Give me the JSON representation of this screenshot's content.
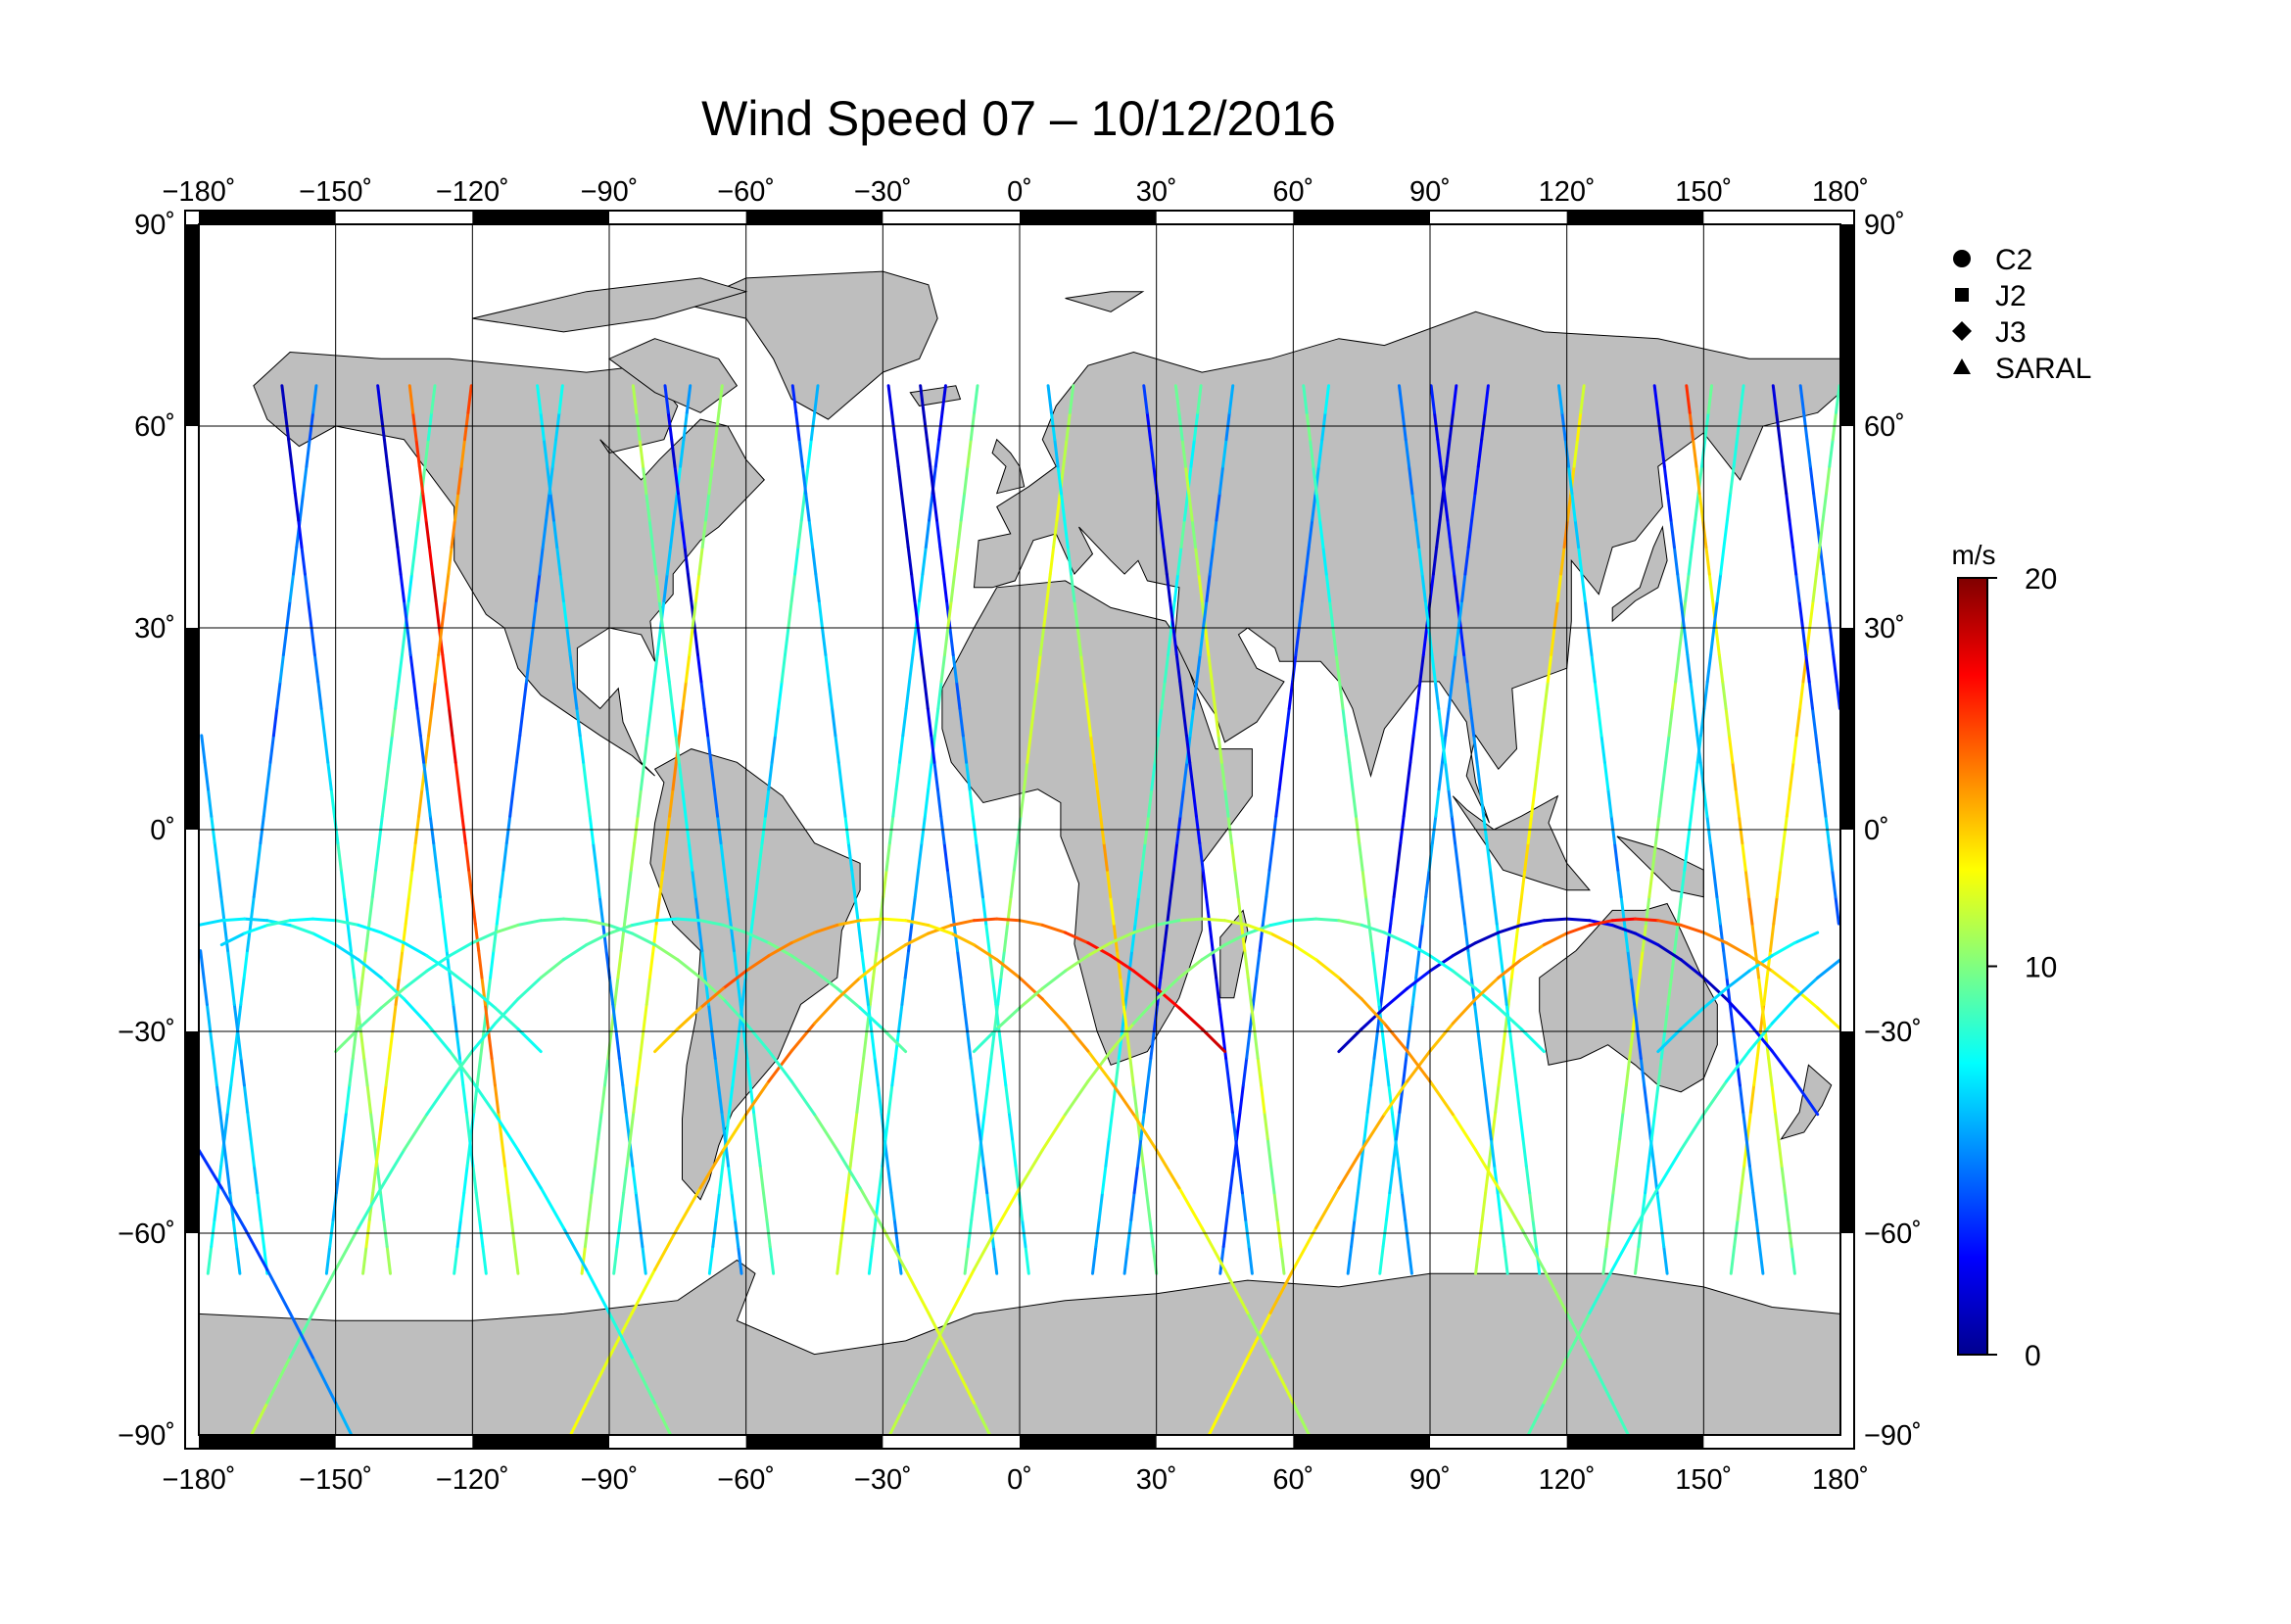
{
  "title": "Wind Speed 07 – 10/12/2016",
  "x_tick_labels": [
    "−180˚",
    "−150˚",
    "−120˚",
    "−90˚",
    "−60˚",
    "−30˚",
    "0˚",
    "30˚",
    "60˚",
    "90˚",
    "120˚",
    "150˚",
    "180˚"
  ],
  "y_tick_labels": [
    "90˚",
    "60˚",
    "30˚",
    "0˚",
    "−30˚",
    "−60˚",
    "−90˚"
  ],
  "legend": [
    {
      "symbol": "circle",
      "label": "C2"
    },
    {
      "symbol": "square",
      "label": "J2"
    },
    {
      "symbol": "diamond",
      "label": "J3"
    },
    {
      "symbol": "triangle",
      "label": "SARAL"
    }
  ],
  "colorbar": {
    "unit": "m/s",
    "min": 0,
    "max": 20,
    "tick_labels": [
      "20",
      "10",
      "0"
    ],
    "tick_values": [
      20,
      10,
      0
    ],
    "colormap": [
      "#00008f",
      "#0000ff",
      "#0080ff",
      "#00ffff",
      "#80ff80",
      "#ffff00",
      "#ff8000",
      "#ff0000",
      "#800000"
    ]
  },
  "map": {
    "lon_range": [
      -180,
      180
    ],
    "lat_range": [
      -90,
      90
    ],
    "graticule_step": 30,
    "land_color": "#bebebe",
    "ocean_color": "#ffffff",
    "grid_color": "#000000"
  },
  "chart_data": {
    "type": "scatter",
    "title": "Wind Speed 07 – 10/12/2016",
    "xlabel": "",
    "ylabel": "",
    "xlim": [
      -180,
      180
    ],
    "ylim": [
      -90,
      90
    ],
    "grid": true,
    "legend_position": "top-right",
    "colorbar_unit": "m/s",
    "colorbar_range": [
      0,
      20
    ],
    "series": [
      {
        "name": "C2",
        "marker": "circle"
      },
      {
        "name": "J2",
        "marker": "square"
      },
      {
        "name": "J3",
        "marker": "diamond"
      },
      {
        "name": "SARAL",
        "marker": "triangle"
      }
    ],
    "tracks": [
      {
        "lon0": -178,
        "lat_range": [
          -66,
          66
        ],
        "asc": true
      },
      {
        "lon0": -165,
        "lat_range": [
          -66,
          66
        ],
        "asc": false
      },
      {
        "lon0": -152,
        "lat_range": [
          -66,
          66
        ],
        "asc": true
      },
      {
        "lon0": -138,
        "lat_range": [
          -66,
          66
        ],
        "asc": false
      },
      {
        "lon0": -124,
        "lat_range": [
          -66,
          66
        ],
        "asc": true
      },
      {
        "lon0": -110,
        "lat_range": [
          -66,
          66
        ],
        "asc": false
      },
      {
        "lon0": -96,
        "lat_range": [
          -66,
          66
        ],
        "asc": true
      },
      {
        "lon0": -82,
        "lat_range": [
          -66,
          66
        ],
        "asc": false
      },
      {
        "lon0": -68,
        "lat_range": [
          -66,
          66
        ],
        "asc": true
      },
      {
        "lon0": -54,
        "lat_range": [
          -66,
          66
        ],
        "asc": false
      },
      {
        "lon0": -40,
        "lat_range": [
          -66,
          66
        ],
        "asc": true
      },
      {
        "lon0": -26,
        "lat_range": [
          -66,
          66
        ],
        "asc": false
      },
      {
        "lon0": -12,
        "lat_range": [
          -66,
          66
        ],
        "asc": true
      },
      {
        "lon0": 2,
        "lat_range": [
          -66,
          66
        ],
        "asc": false
      },
      {
        "lon0": 16,
        "lat_range": [
          -66,
          66
        ],
        "asc": true
      },
      {
        "lon0": 30,
        "lat_range": [
          -66,
          66
        ],
        "asc": false
      },
      {
        "lon0": 44,
        "lat_range": [
          -66,
          66
        ],
        "asc": true
      },
      {
        "lon0": 58,
        "lat_range": [
          -66,
          66
        ],
        "asc": false
      },
      {
        "lon0": 72,
        "lat_range": [
          -66,
          66
        ],
        "asc": true
      },
      {
        "lon0": 86,
        "lat_range": [
          -66,
          66
        ],
        "asc": false
      },
      {
        "lon0": 100,
        "lat_range": [
          -66,
          66
        ],
        "asc": true
      },
      {
        "lon0": 114,
        "lat_range": [
          -66,
          66
        ],
        "asc": false
      },
      {
        "lon0": 128,
        "lat_range": [
          -66,
          66
        ],
        "asc": true
      },
      {
        "lon0": 142,
        "lat_range": [
          -66,
          66
        ],
        "asc": false
      },
      {
        "lon0": 156,
        "lat_range": [
          -66,
          66
        ],
        "asc": true
      },
      {
        "lon0": 170,
        "lat_range": [
          -66,
          66
        ],
        "asc": false
      },
      {
        "lon0": -171,
        "lat_range": [
          -66,
          66
        ],
        "asc": false
      },
      {
        "lon0": -144,
        "lat_range": [
          -66,
          66
        ],
        "asc": true
      },
      {
        "lon0": -117,
        "lat_range": [
          -66,
          66
        ],
        "asc": false
      },
      {
        "lon0": -89,
        "lat_range": [
          -66,
          66
        ],
        "asc": true
      },
      {
        "lon0": -61,
        "lat_range": [
          -66,
          66
        ],
        "asc": false
      },
      {
        "lon0": -33,
        "lat_range": [
          -66,
          66
        ],
        "asc": true
      },
      {
        "lon0": -5,
        "lat_range": [
          -66,
          66
        ],
        "asc": false
      },
      {
        "lon0": 23,
        "lat_range": [
          -66,
          66
        ],
        "asc": true
      },
      {
        "lon0": 51,
        "lat_range": [
          -66,
          66
        ],
        "asc": false
      },
      {
        "lon0": 79,
        "lat_range": [
          -66,
          66
        ],
        "asc": true
      },
      {
        "lon0": 107,
        "lat_range": [
          -66,
          66
        ],
        "asc": false
      },
      {
        "lon0": 135,
        "lat_range": [
          -66,
          66
        ],
        "asc": true
      },
      {
        "lon0": 163,
        "lat_range": [
          -66,
          66
        ],
        "asc": false
      }
    ],
    "arcs": [
      {
        "lon0": -175,
        "asc": true
      },
      {
        "lon0": -140,
        "asc": false
      },
      {
        "lon0": -105,
        "asc": true
      },
      {
        "lon0": -70,
        "asc": false
      },
      {
        "lon0": -35,
        "asc": true
      },
      {
        "lon0": 0,
        "asc": false
      },
      {
        "lon0": 35,
        "asc": true
      },
      {
        "lon0": 70,
        "asc": false
      },
      {
        "lon0": 105,
        "asc": true
      },
      {
        "lon0": 140,
        "asc": false
      }
    ]
  }
}
